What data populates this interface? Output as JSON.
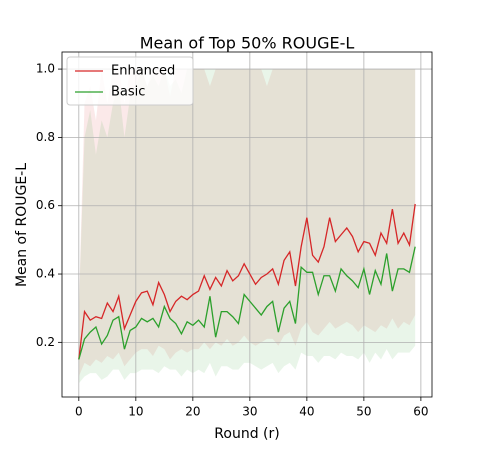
{
  "chart_data": {
    "type": "line",
    "title": "Mean of Top 50% ROUGE-L",
    "xlabel": "Round (r)",
    "ylabel": "Mean of ROUGE-L",
    "x": [
      0,
      1,
      2,
      3,
      4,
      5,
      6,
      7,
      8,
      9,
      10,
      11,
      12,
      13,
      14,
      15,
      16,
      17,
      18,
      19,
      20,
      21,
      22,
      23,
      24,
      25,
      26,
      27,
      28,
      29,
      30,
      31,
      32,
      33,
      34,
      35,
      36,
      37,
      38,
      39,
      40,
      41,
      42,
      43,
      44,
      45,
      46,
      47,
      48,
      49,
      50,
      51,
      52,
      53,
      54,
      55,
      56,
      57,
      58,
      59
    ],
    "series": [
      {
        "name": "Enhanced",
        "color": "#d62728",
        "values": [
          0.15,
          0.29,
          0.265,
          0.275,
          0.27,
          0.315,
          0.29,
          0.335,
          0.24,
          0.28,
          0.32,
          0.345,
          0.35,
          0.31,
          0.375,
          0.34,
          0.29,
          0.32,
          0.335,
          0.325,
          0.34,
          0.35,
          0.395,
          0.355,
          0.39,
          0.365,
          0.41,
          0.38,
          0.395,
          0.43,
          0.4,
          0.37,
          0.39,
          0.4,
          0.415,
          0.37,
          0.44,
          0.465,
          0.365,
          0.48,
          0.565,
          0.455,
          0.435,
          0.48,
          0.565,
          0.495,
          0.515,
          0.535,
          0.51,
          0.465,
          0.495,
          0.49,
          0.455,
          0.52,
          0.49,
          0.59,
          0.49,
          0.52,
          0.485,
          0.605
        ],
        "band_upper": [
          0.3,
          0.9,
          0.95,
          0.85,
          1.0,
          0.9,
          1.0,
          1.0,
          0.9,
          1.0,
          1.0,
          1.0,
          0.95,
          1.0,
          1.0,
          1.0,
          0.92,
          1.0,
          1.0,
          1.0,
          1.0,
          1.0,
          1.0,
          0.95,
          1.0,
          1.0,
          1.0,
          1.0,
          1.0,
          1.0,
          1.0,
          1.0,
          1.0,
          0.95,
          1.0,
          1.0,
          1.0,
          1.0,
          1.0,
          1.0,
          1.0,
          1.0,
          1.0,
          1.0,
          1.0,
          1.0,
          1.0,
          1.0,
          1.0,
          1.0,
          1.0,
          1.0,
          1.0,
          1.0,
          1.0,
          1.0,
          1.0,
          1.0,
          1.0,
          1.0
        ],
        "band_lower": [
          0.1,
          0.14,
          0.13,
          0.15,
          0.14,
          0.16,
          0.15,
          0.17,
          0.13,
          0.15,
          0.17,
          0.18,
          0.18,
          0.16,
          0.19,
          0.18,
          0.15,
          0.17,
          0.18,
          0.17,
          0.18,
          0.18,
          0.2,
          0.18,
          0.2,
          0.19,
          0.21,
          0.19,
          0.2,
          0.22,
          0.2,
          0.19,
          0.2,
          0.21,
          0.21,
          0.19,
          0.22,
          0.23,
          0.19,
          0.24,
          0.26,
          0.23,
          0.22,
          0.24,
          0.26,
          0.24,
          0.25,
          0.26,
          0.25,
          0.23,
          0.25,
          0.24,
          0.23,
          0.25,
          0.24,
          0.27,
          0.24,
          0.26,
          0.25,
          0.28
        ]
      },
      {
        "name": "Basic",
        "color": "#2ca02c",
        "values": [
          0.15,
          0.21,
          0.23,
          0.245,
          0.195,
          0.22,
          0.265,
          0.275,
          0.18,
          0.235,
          0.245,
          0.27,
          0.26,
          0.27,
          0.245,
          0.305,
          0.27,
          0.255,
          0.225,
          0.26,
          0.25,
          0.265,
          0.245,
          0.335,
          0.215,
          0.29,
          0.29,
          0.275,
          0.255,
          0.34,
          0.32,
          0.3,
          0.28,
          0.305,
          0.32,
          0.23,
          0.3,
          0.32,
          0.255,
          0.42,
          0.405,
          0.405,
          0.34,
          0.395,
          0.395,
          0.35,
          0.415,
          0.395,
          0.38,
          0.36,
          0.415,
          0.34,
          0.41,
          0.37,
          0.46,
          0.35,
          0.415,
          0.415,
          0.405,
          0.48
        ],
        "band_upper": [
          0.3,
          0.8,
          0.88,
          0.75,
          0.85,
          0.8,
          0.9,
          0.95,
          0.8,
          0.92,
          0.95,
          1.0,
          0.95,
          0.98,
          0.95,
          1.0,
          0.95,
          0.97,
          0.93,
          1.0,
          1.0,
          1.0,
          1.0,
          1.0,
          1.0,
          1.0,
          1.0,
          1.0,
          1.0,
          1.0,
          1.0,
          1.0,
          1.0,
          1.0,
          1.0,
          1.0,
          1.0,
          1.0,
          1.0,
          1.0,
          1.0,
          1.0,
          1.0,
          1.0,
          1.0,
          1.0,
          1.0,
          1.0,
          1.0,
          1.0,
          1.0,
          1.0,
          1.0,
          1.0,
          1.0,
          1.0,
          1.0,
          1.0,
          1.0,
          1.0
        ],
        "band_lower": [
          0.08,
          0.1,
          0.11,
          0.11,
          0.09,
          0.1,
          0.12,
          0.12,
          0.09,
          0.11,
          0.11,
          0.12,
          0.12,
          0.12,
          0.11,
          0.13,
          0.12,
          0.12,
          0.1,
          0.12,
          0.11,
          0.12,
          0.11,
          0.14,
          0.1,
          0.13,
          0.13,
          0.12,
          0.12,
          0.14,
          0.14,
          0.13,
          0.12,
          0.13,
          0.14,
          0.11,
          0.13,
          0.14,
          0.12,
          0.17,
          0.16,
          0.16,
          0.14,
          0.16,
          0.16,
          0.15,
          0.17,
          0.16,
          0.16,
          0.15,
          0.17,
          0.14,
          0.17,
          0.15,
          0.18,
          0.15,
          0.17,
          0.17,
          0.17,
          0.19
        ]
      }
    ],
    "xlim": [
      -2.95,
      61.95
    ],
    "ylim": [
      0.04,
      1.05
    ],
    "xticks": [
      0,
      10,
      20,
      30,
      40,
      50,
      60
    ],
    "yticks": [
      0.2,
      0.4,
      0.6,
      0.8,
      {
        "value": 1.0,
        "label": "1.0"
      }
    ],
    "grid": true,
    "legend": "upper left"
  }
}
